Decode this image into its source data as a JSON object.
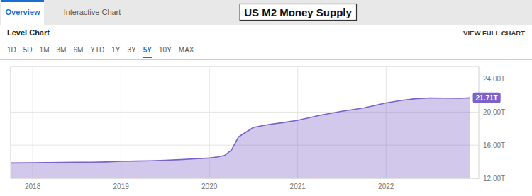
{
  "chart_data": {
    "type": "area",
    "title": "US M2 Money Supply",
    "subtitle": "Level Chart",
    "tabs": [
      "Overview",
      "Interactive Chart"
    ],
    "links": [
      "VIEW FULL CHART"
    ],
    "buttons": [
      "1D",
      "5D",
      "1M",
      "3M",
      "6M",
      "YTD",
      "1Y",
      "3Y",
      "5Y",
      "10Y",
      "MAX"
    ],
    "active_button": "5Y",
    "x": [
      2017.75,
      2018.0,
      2018.17,
      2018.33,
      2018.5,
      2018.67,
      2018.83,
      2019.0,
      2019.17,
      2019.33,
      2019.5,
      2019.67,
      2019.83,
      2020.0,
      2020.08,
      2020.17,
      2020.25,
      2020.33,
      2020.5,
      2020.67,
      2020.83,
      2021.0,
      2021.25,
      2021.5,
      2021.75,
      2022.0,
      2022.17,
      2022.33,
      2022.5,
      2022.67,
      2022.83,
      2022.95
    ],
    "values": [
      13.85,
      13.87,
      13.89,
      13.91,
      13.93,
      13.95,
      13.98,
      14.05,
      14.08,
      14.12,
      14.18,
      14.25,
      14.35,
      14.45,
      14.55,
      14.75,
      15.4,
      17.0,
      18.15,
      18.5,
      18.72,
      19.0,
      19.6,
      20.1,
      20.5,
      21.1,
      21.4,
      21.6,
      21.7,
      21.68,
      21.65,
      21.71
    ],
    "color": "#7b61c9",
    "xlim": [
      2017.75,
      2023.05
    ],
    "xticks": [
      2018,
      2019,
      2020,
      2021,
      2022
    ],
    "ylim": [
      12.0,
      25.5
    ],
    "yticks": [
      {
        "value": 12.0,
        "label": "12.00T"
      },
      {
        "value": 16.0,
        "label": "16.00T"
      },
      {
        "value": 20.0,
        "label": "20.00T"
      },
      {
        "value": 24.0,
        "label": "24.00T"
      }
    ],
    "grid": true,
    "annotations": [
      {
        "text": "21.71T",
        "x": 2022.95,
        "y": 21.71
      }
    ]
  }
}
